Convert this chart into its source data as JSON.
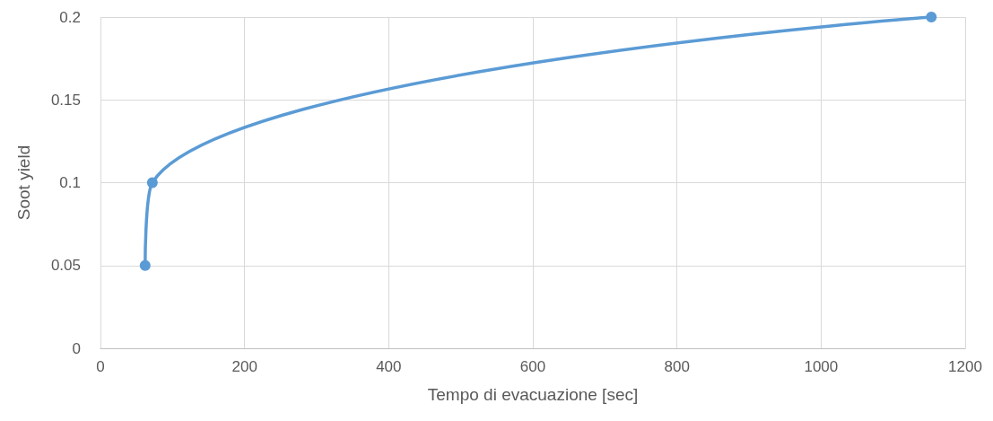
{
  "chart_data": {
    "type": "line",
    "xlabel": "Tempo di evacuazione [sec]",
    "ylabel": "Soot yield",
    "x": [
      62,
      72,
      1153
    ],
    "series": [
      {
        "color": "#5b9bd5",
        "values": [
          0.05,
          0.1,
          0.2
        ]
      }
    ],
    "xlim": [
      0,
      1200
    ],
    "xticks": [
      0,
      200,
      400,
      600,
      800,
      1000,
      1200
    ],
    "ylim": [
      0,
      0.2
    ],
    "yticks": [
      0,
      0.05,
      0.1,
      0.15,
      0.2
    ],
    "grid": true,
    "marker": "circle",
    "line_style": "solid"
  }
}
